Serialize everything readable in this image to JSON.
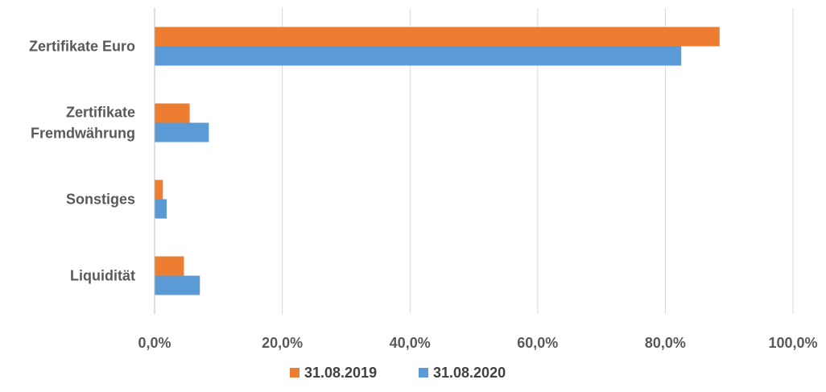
{
  "chart_data": {
    "type": "bar",
    "orientation": "horizontal",
    "categories": [
      "Zertifikate Euro",
      "Zertifikate Fremdwährung",
      "Sonstiges",
      "Liquidität"
    ],
    "category_lines": [
      [
        "Zertifikate Euro"
      ],
      [
        "Zertifikate",
        "Fremdwährung"
      ],
      [
        "Sonstiges"
      ],
      [
        "Liquidität"
      ]
    ],
    "series": [
      {
        "name": "31.08.2019",
        "color": "#ED7D31",
        "values": [
          88.5,
          5.5,
          1.3,
          4.6
        ]
      },
      {
        "name": "31.08.2020",
        "color": "#5B9BD5",
        "values": [
          82.5,
          8.5,
          1.9,
          7.1
        ]
      }
    ],
    "xlim": [
      0,
      100
    ],
    "xticks": [
      0,
      20,
      40,
      60,
      80,
      100
    ],
    "xtick_labels": [
      "0,0%",
      "20,0%",
      "40,0%",
      "60,0%",
      "80,0%",
      "100,0%"
    ],
    "grid": true,
    "legend_position": "bottom"
  }
}
